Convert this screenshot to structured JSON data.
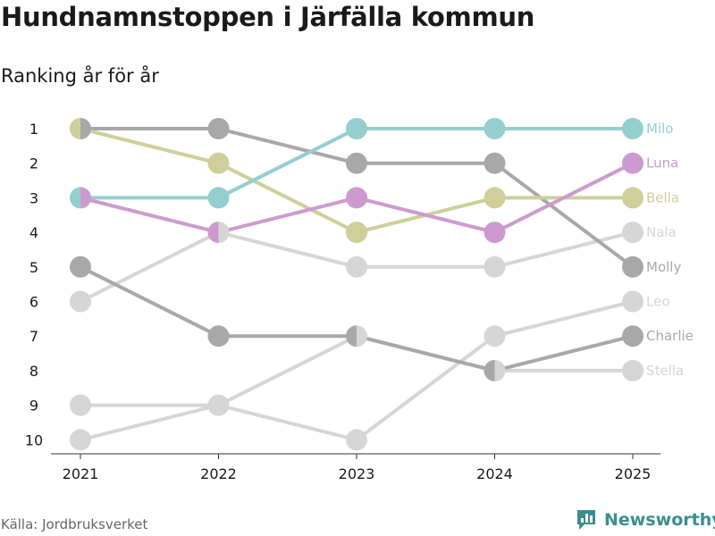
{
  "title": "Hundnamnstoppen i Järfälla kommun",
  "subtitle": "Ranking år för år",
  "source": "Källa: Jordbruksverket",
  "brand": {
    "name": "Newsworthy",
    "icon": "newsworthy-logo-icon",
    "color": "#3a8f8c"
  },
  "chart_data": {
    "type": "line",
    "title": "Hundnamnstoppen i Järfälla kommun",
    "subtitle": "Ranking år för år",
    "x": [
      "2021",
      "2022",
      "2023",
      "2024",
      "2025"
    ],
    "y_ticks": [
      1,
      2,
      3,
      4,
      5,
      6,
      7,
      8,
      9,
      10
    ],
    "ylim": [
      1,
      10
    ],
    "y_inverted": true,
    "xlabel": "",
    "ylabel": "",
    "series": [
      {
        "name": "Stella",
        "color": "#d6d6d6",
        "values": [
          9,
          9,
          7,
          8,
          8
        ]
      },
      {
        "name": "Leo",
        "color": "#d6d6d6",
        "values": [
          10,
          9,
          10,
          7,
          6
        ]
      },
      {
        "name": "Nala",
        "color": "#d6d6d6",
        "values": [
          6,
          4,
          5,
          5,
          4
        ]
      },
      {
        "name": "Charlie",
        "color": "#a8a8a8",
        "values": [
          5,
          7,
          7,
          8,
          7
        ]
      },
      {
        "name": "Molly",
        "color": "#a8a8a8",
        "values": [
          1,
          1,
          2,
          2,
          5
        ]
      },
      {
        "name": "Bella",
        "color": "#cfcf9b",
        "values": [
          1,
          2,
          4,
          3,
          3
        ]
      },
      {
        "name": "Luna",
        "color": "#cd9acf",
        "values": [
          3,
          4,
          3,
          4,
          2
        ]
      },
      {
        "name": "Milo",
        "color": "#95cece",
        "values": [
          3,
          3,
          1,
          1,
          1
        ]
      }
    ]
  }
}
